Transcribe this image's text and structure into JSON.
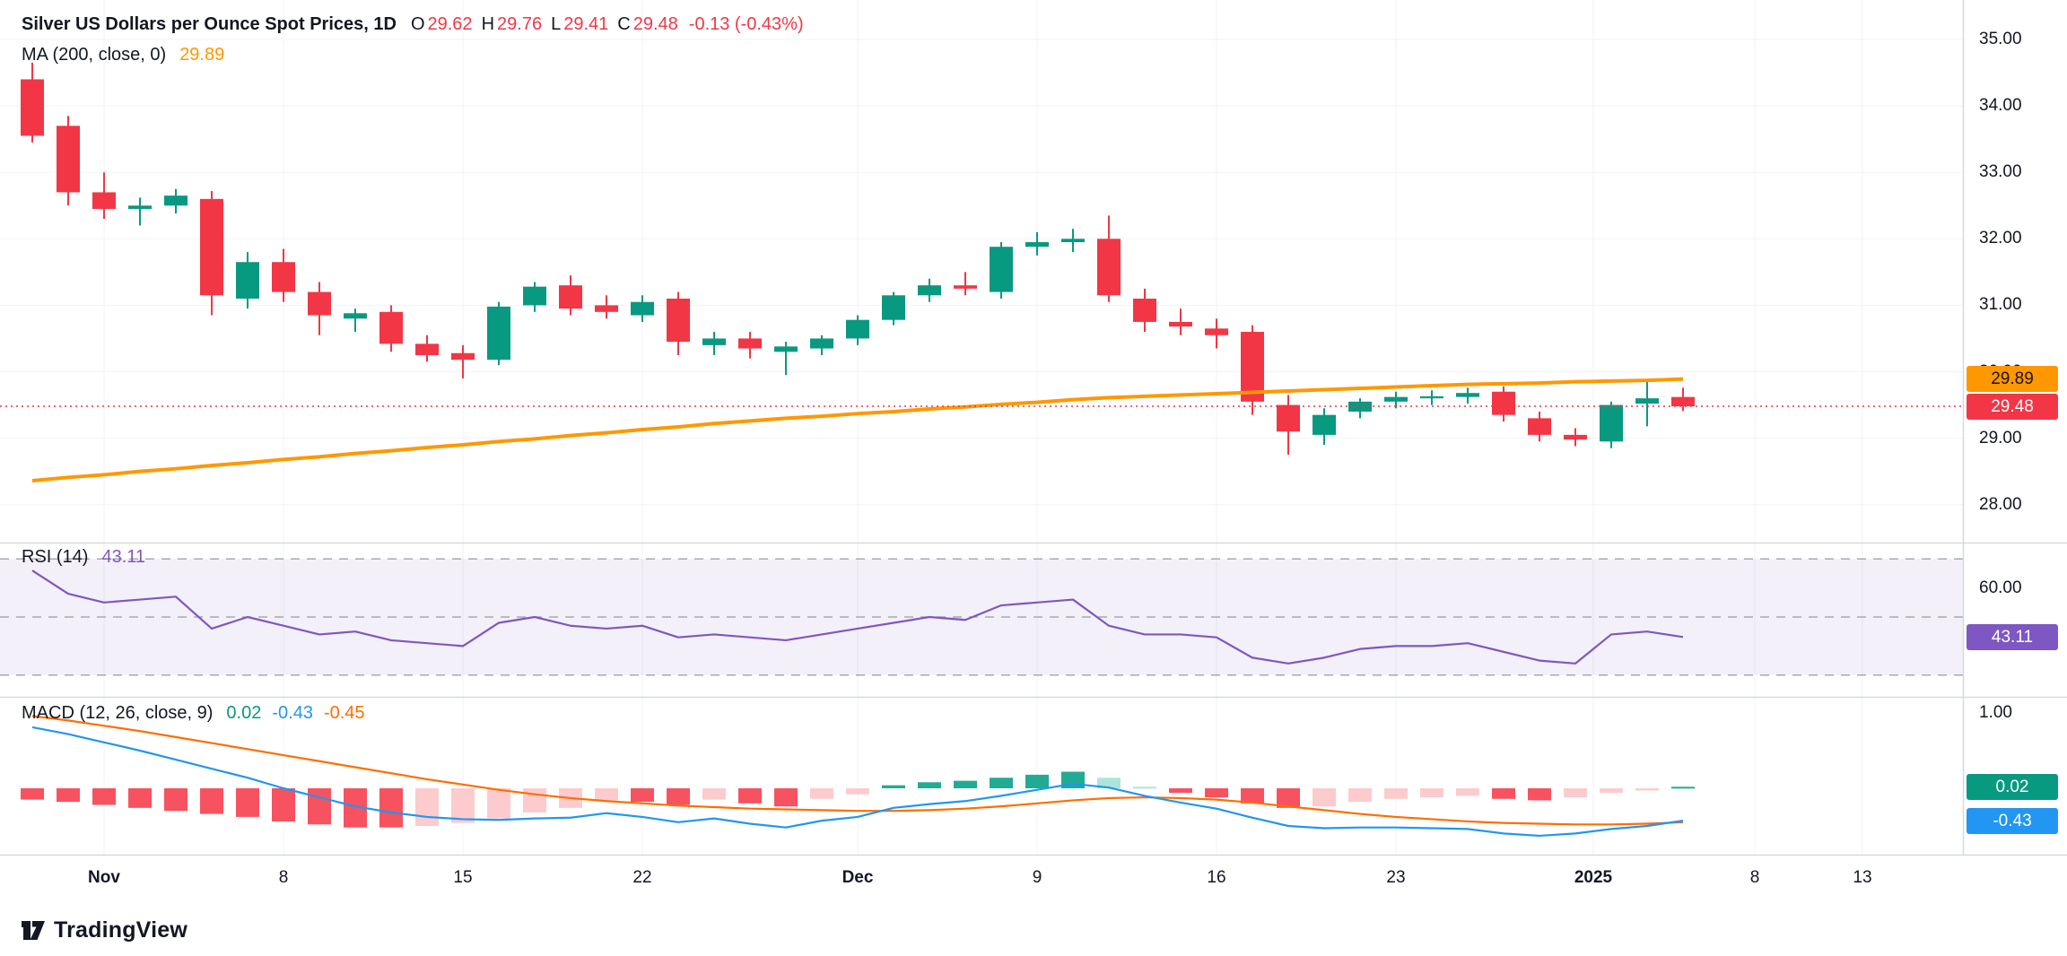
{
  "header": {
    "title": "Silver US Dollars per Ounce Spot Prices, 1D",
    "ohlc": {
      "o_label": "O",
      "o": "29.62",
      "h_label": "H",
      "h": "29.76",
      "l_label": "L",
      "l": "29.41",
      "c_label": "C",
      "c": "29.48",
      "change": "-0.13 (-0.43%)"
    },
    "ma_label": "MA (200, close, 0)",
    "ma_value": "29.89"
  },
  "rsi_panel": {
    "label": "RSI (14)",
    "value": "43.11"
  },
  "macd_panel": {
    "label": "MACD (12, 26, close, 9)",
    "hist_value": "0.02",
    "macd_value": "-0.43",
    "signal_value": "-0.45"
  },
  "badges": {
    "ma": "29.89",
    "price": "29.48",
    "rsi": "43.11",
    "macd_hist": "0.02",
    "macd_line": "-0.43"
  },
  "footer": {
    "brand": "TradingView"
  },
  "colors": {
    "up": "#089981",
    "down": "#F23645",
    "ma": "#FF9800",
    "rsi": "#7E57C2",
    "rsi_band": "rgba(126,87,194,0.09)",
    "macd": "#2196F3",
    "signal": "#FF6D00",
    "histUp": "#22AB94",
    "histUpLight": "#ACE5DC",
    "histDown": "#F7525F",
    "histDownLight": "#FCCBCD",
    "grid": "#F0F3FA",
    "border": "#D6D9E0",
    "dashed": "#A6A9B3",
    "text": "#131722"
  },
  "chart_data": {
    "type": "candlestick",
    "title": "Silver US Dollars per Ounce Spot Prices",
    "interval": "1D",
    "ohlc_current": {
      "open": 29.62,
      "high": 29.76,
      "low": 29.41,
      "close": 29.48,
      "change": -0.13,
      "change_pct": -0.43
    },
    "price_axis_ticks": [
      35,
      34,
      33,
      32,
      31,
      30,
      29,
      28
    ],
    "ylim": [
      27.9,
      35.1
    ],
    "candles": [
      [
        34.4,
        34.65,
        33.45,
        33.55
      ],
      [
        33.7,
        33.85,
        32.5,
        32.7
      ],
      [
        32.7,
        33.0,
        32.3,
        32.45
      ],
      [
        32.45,
        32.62,
        32.2,
        32.5
      ],
      [
        32.5,
        32.75,
        32.38,
        32.65
      ],
      [
        32.6,
        32.72,
        30.85,
        31.15
      ],
      [
        31.1,
        31.8,
        30.95,
        31.65
      ],
      [
        31.65,
        31.85,
        31.05,
        31.2
      ],
      [
        31.2,
        31.35,
        30.55,
        30.85
      ],
      [
        30.8,
        30.95,
        30.6,
        30.88
      ],
      [
        30.9,
        31.0,
        30.3,
        30.42
      ],
      [
        30.42,
        30.55,
        30.15,
        30.25
      ],
      [
        30.28,
        30.4,
        29.9,
        30.18
      ],
      [
        30.18,
        31.05,
        30.1,
        30.98
      ],
      [
        31.0,
        31.35,
        30.9,
        31.28
      ],
      [
        31.3,
        31.45,
        30.85,
        30.95
      ],
      [
        31.0,
        31.15,
        30.8,
        30.9
      ],
      [
        30.85,
        31.15,
        30.75,
        31.05
      ],
      [
        31.1,
        31.2,
        30.25,
        30.45
      ],
      [
        30.4,
        30.6,
        30.25,
        30.5
      ],
      [
        30.5,
        30.6,
        30.2,
        30.35
      ],
      [
        30.3,
        30.45,
        29.95,
        30.38
      ],
      [
        30.35,
        30.55,
        30.25,
        30.5
      ],
      [
        30.5,
        30.85,
        30.4,
        30.78
      ],
      [
        30.78,
        31.2,
        30.7,
        31.15
      ],
      [
        31.15,
        31.4,
        31.05,
        31.3
      ],
      [
        31.3,
        31.5,
        31.15,
        31.25
      ],
      [
        31.2,
        31.95,
        31.1,
        31.88
      ],
      [
        31.88,
        32.1,
        31.75,
        31.95
      ],
      [
        31.95,
        32.15,
        31.8,
        32.0
      ],
      [
        32.0,
        32.35,
        31.05,
        31.15
      ],
      [
        31.1,
        31.25,
        30.6,
        30.75
      ],
      [
        30.75,
        30.95,
        30.55,
        30.68
      ],
      [
        30.65,
        30.8,
        30.35,
        30.55
      ],
      [
        30.6,
        30.7,
        29.35,
        29.55
      ],
      [
        29.5,
        29.65,
        28.75,
        29.1
      ],
      [
        29.05,
        29.45,
        28.9,
        29.35
      ],
      [
        29.4,
        29.6,
        29.3,
        29.55
      ],
      [
        29.55,
        29.7,
        29.45,
        29.62
      ],
      [
        29.6,
        29.72,
        29.5,
        29.63
      ],
      [
        29.62,
        29.76,
        29.52,
        29.68
      ],
      [
        29.7,
        29.78,
        29.25,
        29.35
      ],
      [
        29.3,
        29.4,
        28.95,
        29.05
      ],
      [
        29.05,
        29.15,
        28.88,
        28.98
      ],
      [
        28.95,
        29.55,
        28.85,
        29.5
      ],
      [
        29.52,
        29.88,
        29.18,
        29.6
      ],
      [
        29.62,
        29.76,
        29.41,
        29.48
      ]
    ],
    "ma200": [
      28.36,
      28.41,
      28.45,
      28.5,
      28.54,
      28.59,
      28.63,
      28.68,
      28.72,
      28.77,
      28.81,
      28.86,
      28.9,
      28.95,
      28.99,
      29.04,
      29.08,
      29.13,
      29.17,
      29.22,
      29.26,
      29.3,
      29.33,
      29.37,
      29.4,
      29.44,
      29.47,
      29.51,
      29.54,
      29.58,
      29.61,
      29.63,
      29.65,
      29.67,
      29.69,
      29.71,
      29.73,
      29.75,
      29.77,
      29.79,
      29.81,
      29.82,
      29.83,
      29.85,
      29.86,
      29.87,
      29.89
    ],
    "ma200_current": 29.89,
    "rsi": {
      "period": 14,
      "current": 43.11,
      "bands": [
        70,
        50,
        30
      ],
      "axis_ticks": [
        60
      ],
      "values": [
        66,
        58,
        55,
        56,
        57,
        46,
        50,
        47,
        44,
        45,
        42,
        41,
        40,
        48,
        50,
        47,
        46,
        47,
        43,
        44,
        43,
        42,
        44,
        46,
        48,
        50,
        49,
        54,
        55,
        56,
        47,
        44,
        44,
        43,
        36,
        34,
        36,
        39,
        40,
        40,
        41,
        38,
        35,
        34,
        44,
        45,
        43.11
      ]
    },
    "macd": {
      "params": "12, 26, close, 9",
      "current": {
        "hist": 0.02,
        "macd": -0.43,
        "signal": -0.45
      },
      "axis_ticks": [
        1
      ],
      "signal": [
        0.96,
        0.9,
        0.83,
        0.76,
        0.68,
        0.6,
        0.52,
        0.44,
        0.36,
        0.28,
        0.2,
        0.12,
        0.05,
        -0.02,
        -0.08,
        -0.13,
        -0.17,
        -0.2,
        -0.23,
        -0.25,
        -0.27,
        -0.28,
        -0.29,
        -0.3,
        -0.3,
        -0.29,
        -0.27,
        -0.24,
        -0.2,
        -0.16,
        -0.13,
        -0.12,
        -0.13,
        -0.15,
        -0.19,
        -0.24,
        -0.29,
        -0.34,
        -0.38,
        -0.41,
        -0.44,
        -0.46,
        -0.47,
        -0.48,
        -0.48,
        -0.47,
        -0.45
      ],
      "hist": [
        -0.15,
        -0.18,
        -0.22,
        -0.26,
        -0.3,
        -0.34,
        -0.38,
        -0.44,
        -0.48,
        -0.52,
        -0.52,
        -0.5,
        -0.46,
        -0.4,
        -0.32,
        -0.26,
        -0.16,
        -0.18,
        -0.22,
        -0.15,
        -0.2,
        -0.24,
        -0.14,
        -0.08,
        0.04,
        0.08,
        0.1,
        0.14,
        0.18,
        0.22,
        0.14,
        0.02,
        -0.06,
        -0.12,
        -0.2,
        -0.26,
        -0.24,
        -0.18,
        -0.14,
        -0.12,
        -0.1,
        -0.14,
        -0.16,
        -0.12,
        -0.06,
        -0.03,
        0.02
      ]
    },
    "time_labels": [
      {
        "text": "Nov",
        "i": 2,
        "bold": true
      },
      {
        "text": "8",
        "i": 7
      },
      {
        "text": "15",
        "i": 12
      },
      {
        "text": "22",
        "i": 17
      },
      {
        "text": "Dec",
        "i": 23,
        "bold": true
      },
      {
        "text": "9",
        "i": 28
      },
      {
        "text": "16",
        "i": 33
      },
      {
        "text": "23",
        "i": 38
      },
      {
        "text": "2025",
        "i": 43.5,
        "bold": true
      },
      {
        "text": "8",
        "i": 48
      },
      {
        "text": "13",
        "i": 51
      }
    ]
  }
}
